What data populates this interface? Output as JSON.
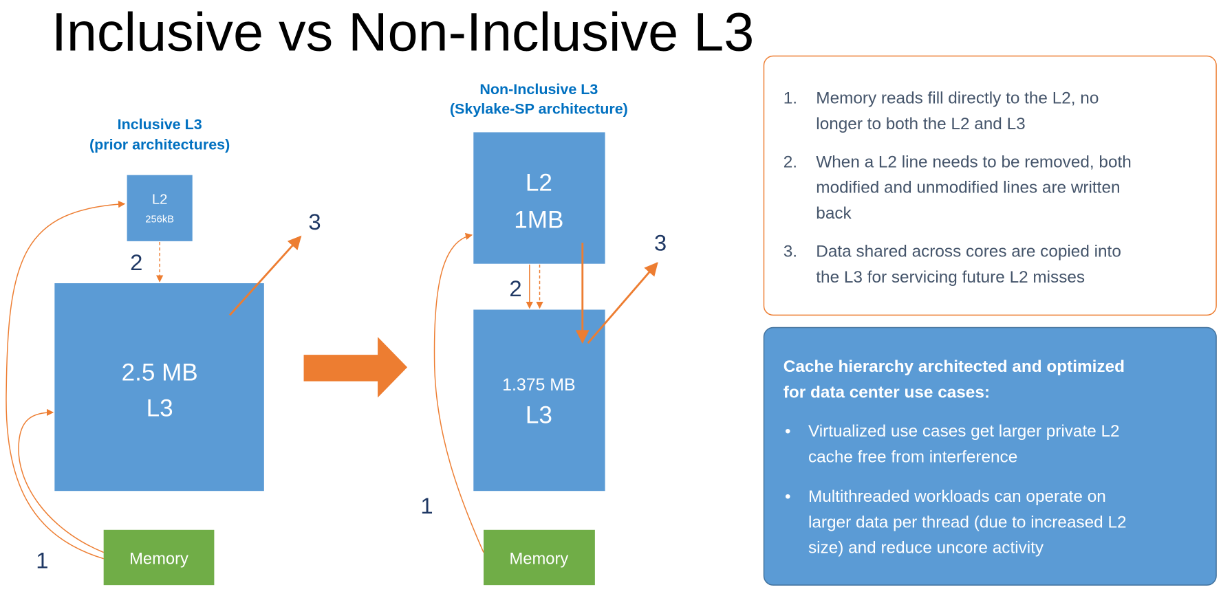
{
  "title": "Inclusive vs Non-Inclusive L3",
  "colors": {
    "box": "#5B9BD5",
    "memory": "#70AD47",
    "arrow": "#ED7D31",
    "heading": "#0070C0",
    "number": "#1F3864",
    "note_text": "#44546A"
  },
  "inclusive": {
    "heading": [
      "Inclusive L3",
      "(prior architectures)"
    ],
    "l2": {
      "name": "L2",
      "size": "256kB"
    },
    "l3": {
      "size": "2.5 MB",
      "name": "L3"
    },
    "memory": "Memory",
    "steps": [
      "1",
      "2",
      "3"
    ]
  },
  "transition_arrow": "right-arrow-icon",
  "non_inclusive": {
    "heading": [
      "Non-Inclusive L3",
      "(Skylake-SP architecture)"
    ],
    "l2": {
      "name": "L2",
      "size": "1MB"
    },
    "l3": {
      "size": "1.375 MB",
      "name": "L3"
    },
    "memory": "Memory",
    "steps": [
      "1",
      "2",
      "3"
    ]
  },
  "notes": {
    "items": [
      {
        "num": "1.",
        "lines": [
          "Memory reads fill directly to the L2, no",
          "longer to both the L2 and L3"
        ]
      },
      {
        "num": "2.",
        "lines": [
          "When a L2 line needs to be removed, both",
          "modified and unmodified lines are written",
          "back"
        ]
      },
      {
        "num": "3.",
        "lines": [
          "Data shared across cores are copied into",
          "the L3 for servicing future L2 misses"
        ]
      }
    ]
  },
  "summary": {
    "heading": [
      "Cache hierarchy architected and optimized",
      "for data center use cases:"
    ],
    "bullet": "•",
    "bullets": [
      {
        "lines": [
          "Virtualized use cases get larger private L2",
          "cache free from interference"
        ]
      },
      {
        "lines": [
          "Multithreaded workloads can operate on",
          "larger data per thread (due to increased L2",
          "size) and reduce uncore activity"
        ]
      }
    ]
  }
}
